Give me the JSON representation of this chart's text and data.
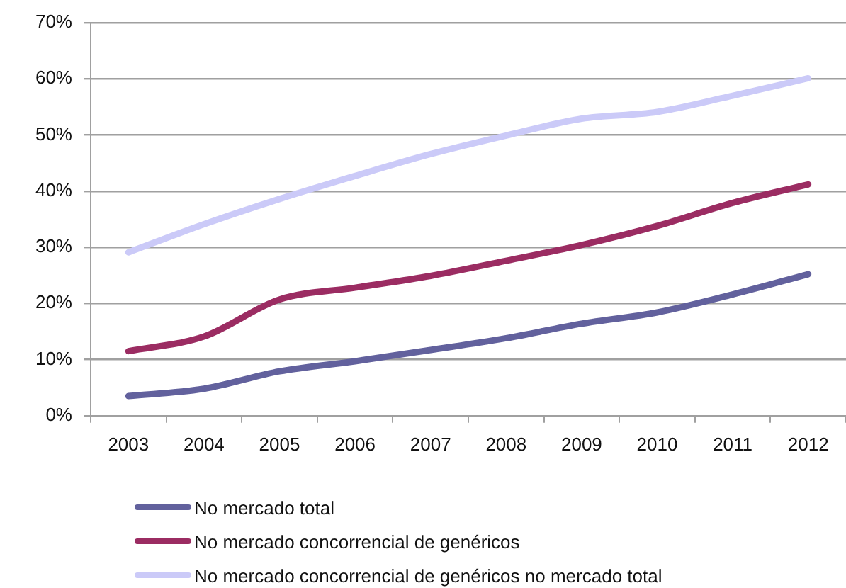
{
  "chart_data": {
    "type": "line",
    "categories": [
      "2003",
      "2004",
      "2005",
      "2006",
      "2007",
      "2008",
      "2009",
      "2010",
      "2011",
      "2012"
    ],
    "series": [
      {
        "name": "No mercado total",
        "color": "#62619d",
        "values": [
          3.5,
          4.8,
          7.9,
          9.7,
          11.7,
          13.8,
          16.4,
          18.4,
          21.6,
          25.2
        ]
      },
      {
        "name": "No mercado concorrencial de genéricos",
        "color": "#9b2c62",
        "values": [
          11.5,
          14.1,
          20.7,
          22.8,
          24.9,
          27.6,
          30.4,
          33.8,
          37.9,
          41.2
        ]
      },
      {
        "name": "No mercado concorrencial de genéricos no mercado total",
        "color": "#cbcaf8",
        "values": [
          29.1,
          34.1,
          38.6,
          42.7,
          46.6,
          49.9,
          52.9,
          54.1,
          57.0,
          60.1
        ]
      }
    ],
    "ylim": [
      0,
      70
    ],
    "yticks": [
      {
        "value": 0,
        "label": "0%"
      },
      {
        "value": 10,
        "label": "10%"
      },
      {
        "value": 20,
        "label": "20%"
      },
      {
        "value": 30,
        "label": "30%"
      },
      {
        "value": 40,
        "label": "40%"
      },
      {
        "value": 50,
        "label": "50%"
      },
      {
        "value": 60,
        "label": "60%"
      },
      {
        "value": 70,
        "label": "70%"
      }
    ],
    "grid": "y",
    "legend": "bottom",
    "marker": "none",
    "line_style": "solid"
  }
}
